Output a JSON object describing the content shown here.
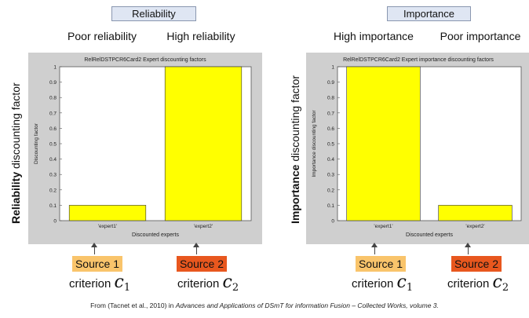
{
  "headers": {
    "left": "Reliability",
    "right": "Importance"
  },
  "column_labels": {
    "left": [
      "Poor reliability",
      "High reliability"
    ],
    "right": [
      "High importance",
      "Poor importance"
    ]
  },
  "side_labels": {
    "left": {
      "bold": "Reliability",
      "rest": " discounting factor"
    },
    "right": {
      "bold": "Importance",
      "rest": " discounting factor"
    }
  },
  "chart_data": [
    {
      "type": "bar",
      "title": "RelRelDSTPCR6Card2 Expert discounting factors",
      "xlabel": "Discounted experts",
      "ylabel": "Discounting factor",
      "categories": [
        "'expert1'",
        "'expert2'"
      ],
      "values": [
        0.1,
        1.0
      ],
      "ylim": [
        0,
        1
      ],
      "yticks": [
        "0",
        "0.1",
        "0.2",
        "0.3",
        "0.4",
        "0.5",
        "0.6",
        "0.7",
        "0.8",
        "0.9",
        "1"
      ],
      "bar_color": "#ffff00",
      "panel_color": "#cfcfcf"
    },
    {
      "type": "bar",
      "title": "RelRelDSTPCR6Card2 Expert importance discounting factors",
      "xlabel": "Discounted experts",
      "ylabel": "Importance discounting factor",
      "categories": [
        "'expert1'",
        "'expert2'"
      ],
      "values": [
        1.0,
        0.1
      ],
      "ylim": [
        0,
        1
      ],
      "yticks": [
        "0",
        "0.1",
        "0.2",
        "0.3",
        "0.4",
        "0.5",
        "0.6",
        "0.7",
        "0.8",
        "0.9",
        "1"
      ],
      "bar_color": "#ffff00",
      "panel_color": "#cfcfcf"
    }
  ],
  "sources": {
    "left": [
      {
        "label": "Source 1",
        "criterion": "criterion",
        "symbol": "c",
        "sub": "1",
        "color": "#f9c46b"
      },
      {
        "label": "Source 2",
        "criterion": "criterion",
        "symbol": "c",
        "sub": "2",
        "color": "#e8571e"
      }
    ],
    "right": [
      {
        "label": "Source 1",
        "criterion": "criterion",
        "symbol": "c",
        "sub": "1",
        "color": "#f9c46b"
      },
      {
        "label": "Source 2",
        "criterion": "criterion",
        "symbol": "c",
        "sub": "2",
        "color": "#e8571e"
      }
    ]
  },
  "footer": {
    "prefix": "From (Tacnet et al., 2010) in ",
    "italic": "Advances and Applications of DSmT for information Fusion – Collected Works, volume 3."
  }
}
